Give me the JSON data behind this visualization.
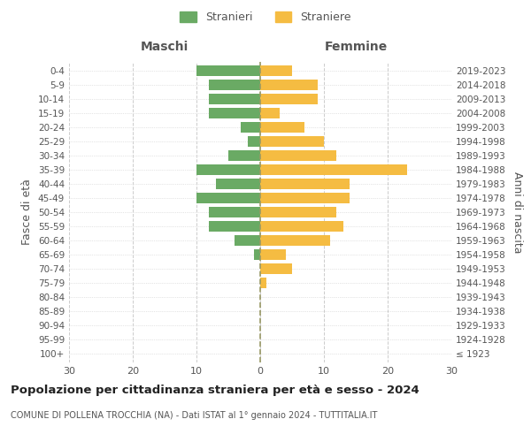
{
  "age_groups": [
    "100+",
    "95-99",
    "90-94",
    "85-89",
    "80-84",
    "75-79",
    "70-74",
    "65-69",
    "60-64",
    "55-59",
    "50-54",
    "45-49",
    "40-44",
    "35-39",
    "30-34",
    "25-29",
    "20-24",
    "15-19",
    "10-14",
    "5-9",
    "0-4"
  ],
  "birth_years": [
    "≤ 1923",
    "1924-1928",
    "1929-1933",
    "1934-1938",
    "1939-1943",
    "1944-1948",
    "1949-1953",
    "1954-1958",
    "1959-1963",
    "1964-1968",
    "1969-1973",
    "1974-1978",
    "1979-1983",
    "1984-1988",
    "1989-1993",
    "1994-1998",
    "1999-2003",
    "2004-2008",
    "2009-2013",
    "2014-2018",
    "2019-2023"
  ],
  "males": [
    0,
    0,
    0,
    0,
    0,
    0,
    0,
    1,
    4,
    8,
    8,
    10,
    7,
    10,
    5,
    2,
    3,
    8,
    8,
    8,
    10
  ],
  "females": [
    0,
    0,
    0,
    0,
    0,
    1,
    5,
    4,
    11,
    13,
    12,
    14,
    14,
    23,
    12,
    10,
    7,
    3,
    9,
    9,
    5
  ],
  "male_color": "#6aaa64",
  "female_color": "#f5bc42",
  "bar_height": 0.75,
  "xlim": 30,
  "title": "Popolazione per cittadinanza straniera per età e sesso - 2024",
  "subtitle": "COMUNE DI POLLENA TROCCHIA (NA) - Dati ISTAT al 1° gennaio 2024 - TUTTITALIA.IT",
  "ylabel_left": "Fasce di età",
  "ylabel_right": "Anni di nascita",
  "header_left": "Maschi",
  "header_right": "Femmine",
  "legend_stranieri": "Stranieri",
  "legend_straniere": "Straniere",
  "bg_color": "#ffffff",
  "grid_color": "#cccccc",
  "dashed_line_color": "#999966",
  "label_color": "#555555"
}
